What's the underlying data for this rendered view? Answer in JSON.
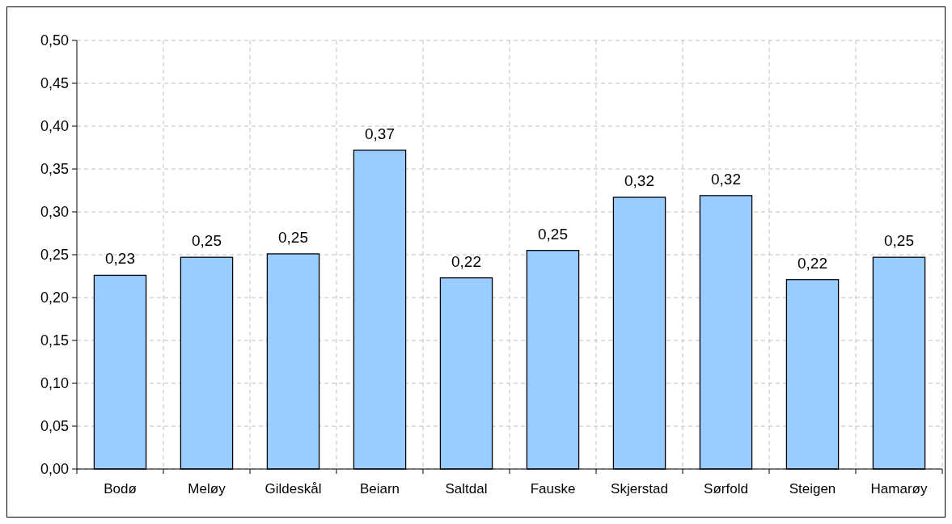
{
  "chart_data": {
    "type": "bar",
    "categories": [
      "Bodø",
      "Meløy",
      "Gildeskål",
      "Beiarn",
      "Saltdal",
      "Fauske",
      "Skjerstad",
      "Sørfold",
      "Steigen",
      "Hamarøy"
    ],
    "values": [
      0.226,
      0.247,
      0.251,
      0.372,
      0.223,
      0.255,
      0.317,
      0.319,
      0.221,
      0.247
    ],
    "value_labels": [
      "0,23",
      "0,25",
      "0,25",
      "0,37",
      "0,22",
      "0,25",
      "0,32",
      "0,32",
      "0,22",
      "0,25"
    ],
    "color": "#99ccff",
    "ylim": [
      0,
      0.5
    ],
    "yticks": [
      {
        "value": 0,
        "label": "0,00"
      },
      {
        "value": 0.05,
        "label": "0,05"
      },
      {
        "value": 0.1,
        "label": "0,10"
      },
      {
        "value": 0.15,
        "label": "0,15"
      },
      {
        "value": 0.2,
        "label": "0,20"
      },
      {
        "value": 0.25,
        "label": "0,25"
      },
      {
        "value": 0.3,
        "label": "0,30"
      },
      {
        "value": 0.35,
        "label": "0,35"
      },
      {
        "value": 0.4,
        "label": "0,40"
      },
      {
        "value": 0.45,
        "label": "0,45"
      },
      {
        "value": 0.5,
        "label": "0,50"
      }
    ],
    "grid": true
  }
}
